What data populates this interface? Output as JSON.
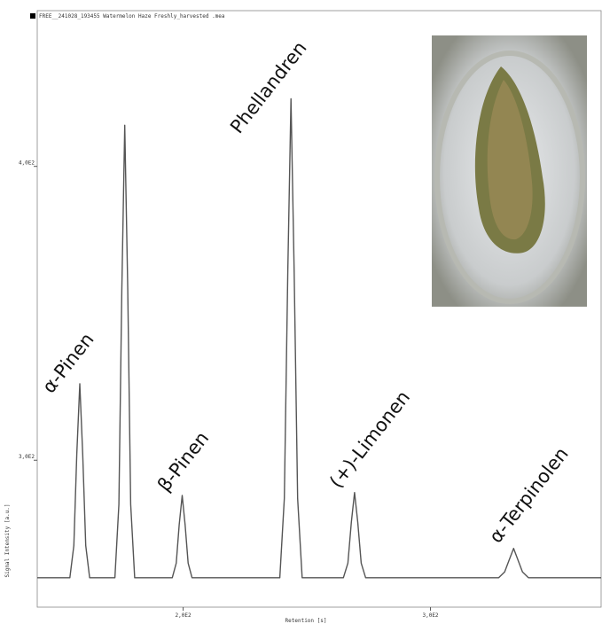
{
  "chart_data": {
    "type": "line",
    "header": "FREE__241028_193455 Watermelon Haze  Freshly_harvested .mea",
    "x_label": "Retention [s]",
    "y_label": "Signal Intensity [a.u.]",
    "xlim": [
      141,
      369
    ],
    "ylim": [
      250,
      453
    ],
    "xticks": [
      {
        "value": 200,
        "label": "2,0E2"
      },
      {
        "value": 300,
        "label": "3,0E2"
      }
    ],
    "yticks": [
      {
        "value": 300,
        "label": "3,0E2"
      },
      {
        "value": 400,
        "label": "4,0E2"
      }
    ],
    "annotations": [
      "α-Pinen",
      "β-Pinen",
      "Phellandren",
      "(+)-Limonen",
      "α-Terpinolen"
    ],
    "series": [
      {
        "color": "#555555",
        "x": [
          141,
          154.2,
          155.8,
          157,
          158.2,
          159.4,
          160.6,
          162.2,
          172.4,
          174,
          175.2,
          176.4,
          177.6,
          178.8,
          180.4,
          185,
          195.6,
          197.2,
          198.4,
          199.6,
          200.8,
          202,
          203.6,
          220,
          239.1,
          240.9,
          242.3,
          243.6,
          244.9,
          246.3,
          248.1,
          264.8,
          266.6,
          268,
          269.3,
          270.6,
          272,
          273.8,
          300,
          327.6,
          330,
          331.8,
          333.6,
          335.4,
          337.2,
          339.6,
          369
        ],
        "values": [
          260,
          260,
          271,
          302,
          326,
          302,
          271,
          260,
          260,
          285,
          358,
          414,
          358,
          285,
          260,
          260,
          260,
          265,
          278,
          288,
          278,
          265,
          260,
          260,
          260,
          287,
          364,
          423,
          364,
          287,
          260,
          260,
          265,
          279,
          289,
          279,
          265,
          260,
          260,
          260,
          262,
          266,
          270,
          266,
          262,
          260,
          260
        ]
      }
    ]
  }
}
